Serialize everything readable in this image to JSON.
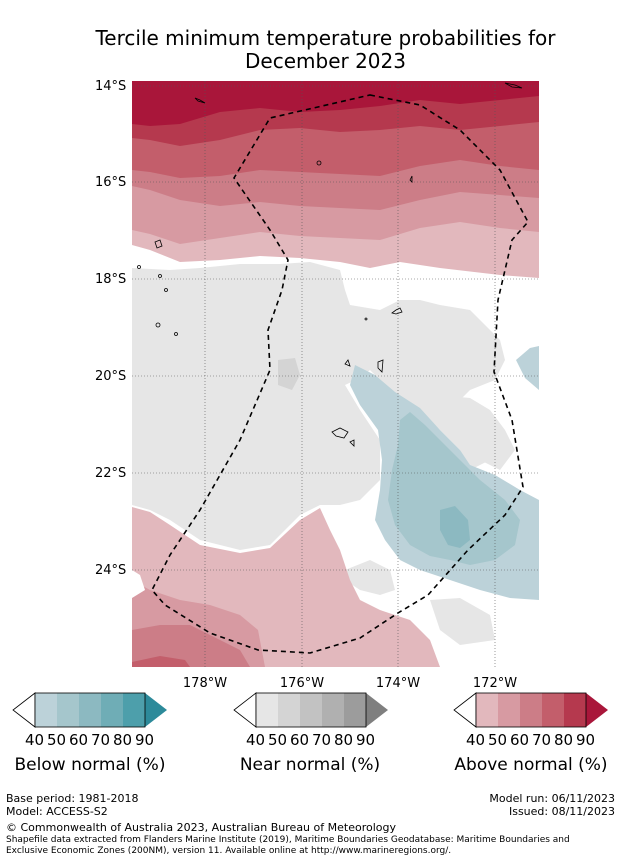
{
  "title_line1": "Tercile minimum temperature probabilities for",
  "title_line2": "December 2023",
  "lat_labels": [
    "14°S",
    "16°S",
    "18°S",
    "20°S",
    "22°S",
    "24°S"
  ],
  "lon_labels": [
    "178°W",
    "176°W",
    "174°W",
    "172°W"
  ],
  "legends": [
    {
      "label": "Below normal (%)",
      "ticks": [
        "40",
        "50",
        "60",
        "70",
        "80",
        "90"
      ],
      "colors": [
        "#bcd2d9",
        "#a5c6cc",
        "#8cb9c1",
        "#6fadb6",
        "#4d9fab",
        "#2c8a9a"
      ]
    },
    {
      "label": "Near normal (%)",
      "ticks": [
        "40",
        "50",
        "60",
        "70",
        "80",
        "90"
      ],
      "colors": [
        "#e6e6e6",
        "#d4d4d4",
        "#c2c2c2",
        "#b0b0b0",
        "#9c9c9c",
        "#7f7f7f"
      ]
    },
    {
      "label": "Above normal (%)",
      "ticks": [
        "40",
        "50",
        "60",
        "70",
        "80",
        "90"
      ],
      "colors": [
        "#e2b8bd",
        "#d79aa2",
        "#cc7d87",
        "#c35e6b",
        "#b5394e",
        "#a9163a"
      ]
    }
  ],
  "footer": {
    "base_period": "Base period: 1981-2018",
    "model": "Model: ACCESS-S2",
    "model_run": "Model run: 06/11/2023",
    "issued": "Issued: 08/11/2023",
    "copyright": "© Commonwealth of Australia 2023, Australian Bureau of Meteorology",
    "shapefile_line1": "Shapefile data extracted from Flanders Marine Institute (2019), Maritime Boundaries Geodatabase: Maritime Boundaries and",
    "shapefile_line2": "Exclusive Economic Zones (200NM), version 11. Available online at http://www.marineregions.org/."
  }
}
